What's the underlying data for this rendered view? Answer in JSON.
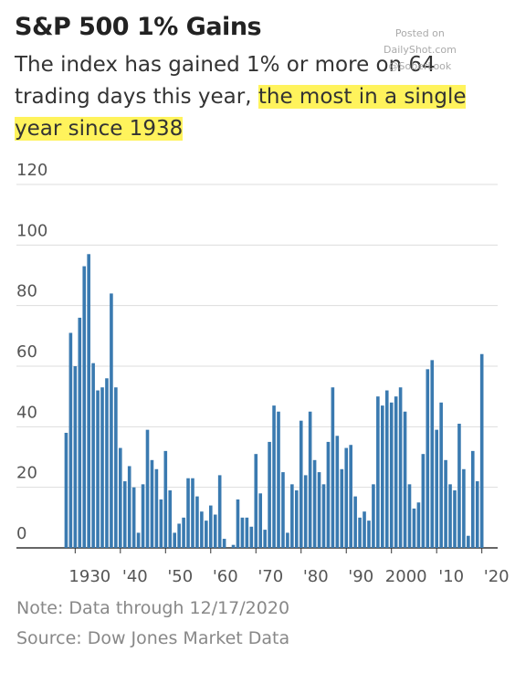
{
  "chart_data": {
    "type": "bar",
    "title": "S&P 500 1% Gains",
    "subtitle": "The index has gained 1% or more on 64 trading days this year, ",
    "subtitle_highlight": "the most in a single year since 1938",
    "watermark": [
      "Posted on",
      "DailyShot.com",
      "@SoberLook"
    ],
    "note": "Note: Data through 12/17/2020",
    "source": "Source: Dow Jones Market Data",
    "color": "#3a7ab0",
    "x": [
      1928,
      1929,
      1930,
      1931,
      1932,
      1933,
      1934,
      1935,
      1936,
      1937,
      1938,
      1939,
      1940,
      1941,
      1942,
      1943,
      1944,
      1945,
      1946,
      1947,
      1948,
      1949,
      1950,
      1951,
      1952,
      1953,
      1954,
      1955,
      1956,
      1957,
      1958,
      1959,
      1960,
      1961,
      1962,
      1963,
      1964,
      1965,
      1966,
      1967,
      1968,
      1969,
      1970,
      1971,
      1972,
      1973,
      1974,
      1975,
      1976,
      1977,
      1978,
      1979,
      1980,
      1981,
      1982,
      1983,
      1984,
      1985,
      1986,
      1987,
      1988,
      1989,
      1990,
      1991,
      1992,
      1993,
      1994,
      1995,
      1996,
      1997,
      1998,
      1999,
      2000,
      2001,
      2002,
      2003,
      2004,
      2005,
      2006,
      2007,
      2008,
      2009,
      2010,
      2011,
      2012,
      2013,
      2014,
      2015,
      2016,
      2017,
      2018,
      2019,
      2020
    ],
    "values": [
      38,
      71,
      60,
      76,
      93,
      97,
      61,
      52,
      53,
      56,
      84,
      53,
      33,
      22,
      27,
      20,
      5,
      21,
      39,
      29,
      26,
      16,
      32,
      19,
      5,
      8,
      10,
      23,
      23,
      17,
      12,
      9,
      14,
      11,
      24,
      3,
      0,
      1,
      16,
      10,
      10,
      7,
      31,
      18,
      6,
      35,
      47,
      45,
      25,
      5,
      21,
      19,
      42,
      24,
      45,
      29,
      25,
      21,
      35,
      53,
      37,
      26,
      33,
      34,
      17,
      10,
      12,
      9,
      21,
      50,
      47,
      52,
      48,
      50,
      53,
      45,
      21,
      13,
      15,
      31,
      59,
      62,
      39,
      48,
      29,
      21,
      19,
      41,
      26,
      4,
      32,
      22,
      64
    ],
    "xlim": [
      1917,
      2023.5
    ],
    "xticks": [
      {
        "value": 1930,
        "label": "1930"
      },
      {
        "value": 1940,
        "label": "'40"
      },
      {
        "value": 1950,
        "label": "'50"
      },
      {
        "value": 1960,
        "label": "'60"
      },
      {
        "value": 1970,
        "label": "'70"
      },
      {
        "value": 1980,
        "label": "'80"
      },
      {
        "value": 1990,
        "label": "'90"
      },
      {
        "value": 2000,
        "label": "2000"
      },
      {
        "value": 2010,
        "label": "'10"
      },
      {
        "value": 2020,
        "label": "'20"
      }
    ],
    "ylim": [
      0,
      120
    ],
    "yticks": [
      0,
      20,
      40,
      60,
      80,
      100,
      120
    ],
    "grid": true
  }
}
